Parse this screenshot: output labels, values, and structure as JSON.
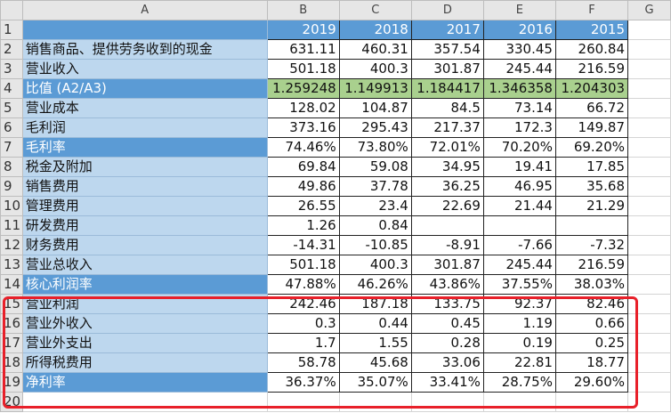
{
  "columns": [
    "",
    "A",
    "B",
    "C",
    "D",
    "E",
    "F",
    "G"
  ],
  "rows": [
    {
      "n": "1",
      "label": "",
      "style": "dark",
      "vals": [
        "2019",
        "2018",
        "2017",
        "2016",
        "2015"
      ],
      "vstyle": "hdr"
    },
    {
      "n": "2",
      "label": "销售商品、提供劳务收到的现金",
      "style": "light",
      "vals": [
        "631.11",
        "460.31",
        "357.54",
        "330.45",
        "260.84"
      ]
    },
    {
      "n": "3",
      "label": "营业收入",
      "style": "light",
      "vals": [
        "501.18",
        "400.3",
        "301.87",
        "245.44",
        "216.59"
      ]
    },
    {
      "n": "4",
      "label": "比值 (A2/A3)",
      "style": "dark",
      "vals": [
        "1.259248",
        "1.149913",
        "1.184417",
        "1.346358",
        "1.204303"
      ],
      "vstyle": "green"
    },
    {
      "n": "5",
      "label": "营业成本",
      "style": "light",
      "vals": [
        "128.02",
        "104.87",
        "84.5",
        "73.14",
        "66.72"
      ]
    },
    {
      "n": "6",
      "label": "毛利润",
      "style": "light",
      "vals": [
        "373.16",
        "295.43",
        "217.37",
        "172.3",
        "149.87"
      ]
    },
    {
      "n": "7",
      "label": "毛利率",
      "style": "dark",
      "vals": [
        "74.46%",
        "73.80%",
        "72.01%",
        "70.20%",
        "69.20%"
      ]
    },
    {
      "n": "8",
      "label": "税金及附加",
      "style": "light",
      "vals": [
        "69.84",
        "59.08",
        "34.95",
        "19.41",
        "17.85"
      ]
    },
    {
      "n": "9",
      "label": "销售费用",
      "style": "light",
      "vals": [
        "49.86",
        "37.78",
        "36.25",
        "46.95",
        "35.68"
      ]
    },
    {
      "n": "10",
      "label": "管理费用",
      "style": "light",
      "vals": [
        "26.55",
        "23.4",
        "22.69",
        "21.44",
        "21.29"
      ]
    },
    {
      "n": "11",
      "label": "研发费用",
      "style": "light",
      "vals": [
        "1.26",
        "0.84",
        "",
        "",
        ""
      ]
    },
    {
      "n": "12",
      "label": "财务费用",
      "style": "light",
      "vals": [
        "-14.31",
        "-10.85",
        "-8.91",
        "-7.66",
        "-7.32"
      ]
    },
    {
      "n": "13",
      "label": "营业总收入",
      "style": "light",
      "vals": [
        "501.18",
        "400.3",
        "301.87",
        "245.44",
        "216.59"
      ]
    },
    {
      "n": "14",
      "label": "核心利润率",
      "style": "dark",
      "vals": [
        "47.88%",
        "46.26%",
        "43.86%",
        "37.55%",
        "38.03%"
      ]
    },
    {
      "n": "15",
      "label": "营业利润",
      "style": "light",
      "vals": [
        "242.46",
        "187.18",
        "133.75",
        "92.37",
        "82.46"
      ]
    },
    {
      "n": "16",
      "label": "营业外收入",
      "style": "light",
      "vals": [
        "0.3",
        "0.44",
        "0.45",
        "1.19",
        "0.66"
      ]
    },
    {
      "n": "17",
      "label": "营业外支出",
      "style": "light",
      "vals": [
        "1.7",
        "1.55",
        "0.28",
        "0.19",
        "0.25"
      ]
    },
    {
      "n": "18",
      "label": "所得税费用",
      "style": "light",
      "vals": [
        "58.78",
        "45.68",
        "33.06",
        "22.81",
        "18.77"
      ]
    },
    {
      "n": "19",
      "label": "净利率",
      "style": "dark",
      "vals": [
        "36.37%",
        "35.07%",
        "33.41%",
        "28.75%",
        "29.60%"
      ]
    },
    {
      "n": "20",
      "label": "",
      "style": "none",
      "vals": [
        "",
        "",
        "",
        "",
        ""
      ]
    }
  ],
  "annotation_color": "#e8202a"
}
